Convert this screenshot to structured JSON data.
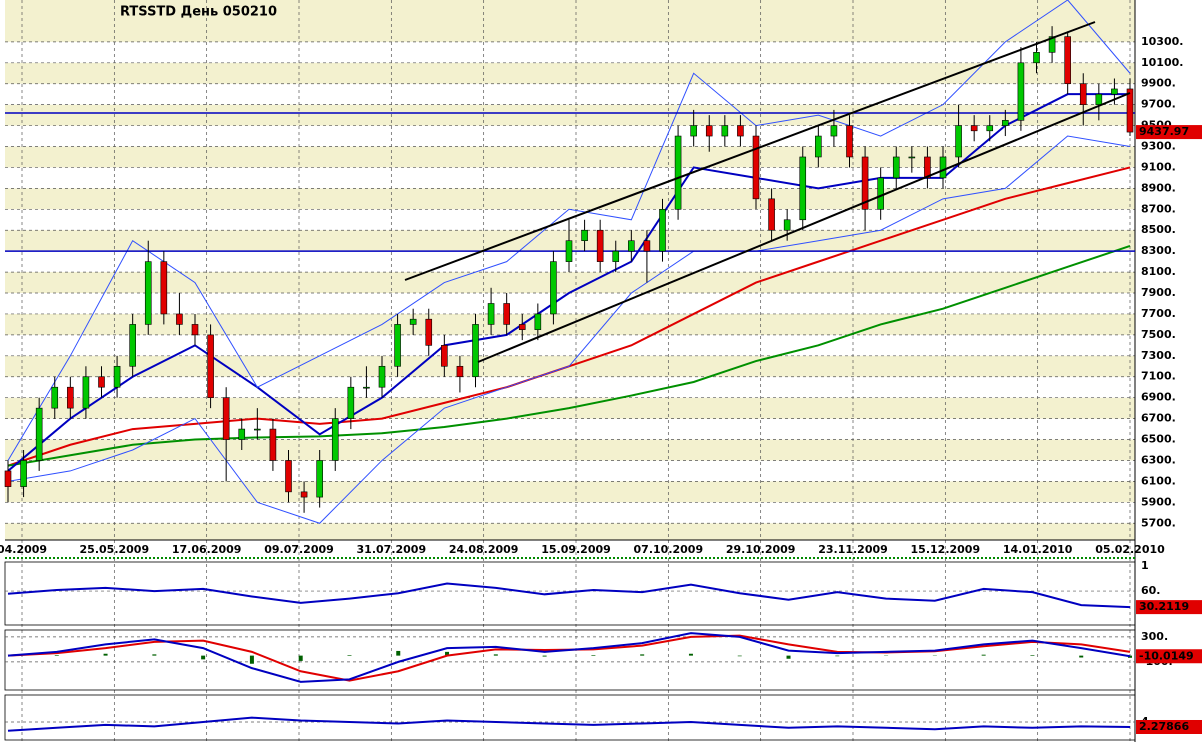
{
  "chart_data": [
    {
      "type": "candlestick",
      "title": "RTSSTD День 050210",
      "x_labels": [
        "04.2009",
        "25.05.2009",
        "17.06.2009",
        "09.07.2009",
        "31.07.2009",
        "24.08.2009",
        "15.09.2009",
        "07.10.2009",
        "29.10.2009",
        "23.11.2009",
        "15.12.2009",
        "14.01.2010",
        "05.02.2010"
      ],
      "open": [
        6200,
        6050,
        6300,
        6800,
        7000,
        6800,
        7100,
        7000,
        7200,
        7600,
        8200,
        7700,
        7600,
        7500,
        6900,
        6500,
        6600,
        6600,
        6300,
        6000,
        5950,
        6300,
        6700,
        7000,
        7000,
        7200,
        7600,
        7650,
        7400,
        7200,
        7100,
        7600,
        7800,
        7600,
        7550,
        7700,
        8200,
        8400,
        8500,
        8200,
        8300,
        8400,
        8300,
        8700,
        9400,
        9500,
        9400,
        9500,
        9400,
        8800,
        8500,
        8600,
        9200,
        9400,
        9500,
        9200,
        8700,
        9000,
        9200,
        9200,
        9000,
        9200,
        9500,
        9450,
        9500,
        9550,
        10100,
        10200,
        10350,
        9900,
        9700,
        9800,
        9850
      ],
      "high": [
        6300,
        6400,
        6900,
        7100,
        7100,
        7200,
        7200,
        7300,
        7700,
        8400,
        8300,
        7900,
        7700,
        7600,
        7000,
        6700,
        6800,
        6700,
        6400,
        6100,
        6400,
        6800,
        7100,
        7200,
        7300,
        7700,
        7750,
        7750,
        7500,
        7300,
        7700,
        7950,
        7900,
        7700,
        7800,
        8300,
        8600,
        8600,
        8600,
        8400,
        8500,
        8500,
        8800,
        9500,
        9650,
        9600,
        9600,
        9600,
        9500,
        8900,
        8700,
        9300,
        9500,
        9650,
        9600,
        9300,
        9100,
        9300,
        9300,
        9300,
        9300,
        9700,
        9600,
        9600,
        9650,
        10250,
        10300,
        10450,
        10400,
        10000,
        9900,
        9950,
        9950
      ],
      "low": [
        5900,
        5950,
        6200,
        6700,
        6700,
        6700,
        6900,
        6900,
        7100,
        7500,
        7600,
        7500,
        7400,
        6800,
        6100,
        6400,
        6500,
        6200,
        5900,
        5800,
        5850,
        6200,
        6600,
        6900,
        6900,
        7100,
        7500,
        7300,
        7100,
        6950,
        7000,
        7500,
        7500,
        7450,
        7450,
        7600,
        8100,
        8300,
        8100,
        8100,
        8200,
        8000,
        8200,
        8600,
        9300,
        9250,
        9300,
        9300,
        8700,
        8400,
        8400,
        8500,
        9100,
        9300,
        9100,
        8500,
        8600,
        8900,
        9050,
        8900,
        8900,
        9100,
        9350,
        9350,
        9400,
        9450,
        10000,
        10100,
        9800,
        9500,
        9550,
        9700,
        9400
      ],
      "close": [
        6050,
        6300,
        6800,
        7000,
        6800,
        7100,
        7000,
        7200,
        7600,
        8200,
        7700,
        7600,
        7500,
        6900,
        6500,
        6600,
        6600,
        6300,
        6000,
        5950,
        6300,
        6700,
        7000,
        7000,
        7200,
        7600,
        7650,
        7400,
        7200,
        7100,
        7600,
        7800,
        7600,
        7550,
        7700,
        8200,
        8400,
        8500,
        8200,
        8300,
        8400,
        8300,
        8700,
        9400,
        9500,
        9400,
        9500,
        9400,
        8800,
        8500,
        8600,
        9200,
        9400,
        9500,
        9200,
        8700,
        9000,
        9200,
        9200,
        9000,
        9200,
        9500,
        9450,
        9500,
        9550,
        10100,
        10200,
        10350,
        9900,
        9700,
        9800,
        9850,
        9437.97
      ],
      "color_up": "#00c800",
      "color_down": "#e00000",
      "overlays": [
        {
          "color": "#e00000",
          "width": 2,
          "values": [
            6250,
            6450,
            6600,
            6650,
            6700,
            6650,
            6700,
            6850,
            7000,
            7200,
            7400,
            7700,
            8000,
            8200,
            8400,
            8600,
            8800,
            8950,
            9100
          ]
        },
        {
          "color": "#009000",
          "width": 2,
          "values": [
            6250,
            6350,
            6450,
            6500,
            6520,
            6530,
            6560,
            6620,
            6700,
            6800,
            6920,
            7050,
            7250,
            7400,
            7600,
            7750,
            7950,
            8150,
            8350
          ]
        },
        {
          "color": "#0000c0",
          "width": 2,
          "values": [
            6200,
            6700,
            7100,
            7400,
            7000,
            6550,
            6900,
            7400,
            7500,
            7900,
            8200,
            9100,
            9000,
            8900,
            9000,
            9000,
            9500,
            9800,
            9800
          ]
        },
        {
          "color": "#3050ff",
          "width": 1,
          "values": [
            6300,
            7300,
            8400,
            8000,
            7000,
            7300,
            7600,
            8000,
            8200,
            8700,
            8600,
            10000,
            9500,
            9600,
            9400,
            9700,
            10300,
            10700,
            10000
          ]
        },
        {
          "color": "#3050ff",
          "width": 1,
          "values": [
            6100,
            6200,
            6400,
            6700,
            5900,
            5700,
            6300,
            6800,
            7000,
            7200,
            7900,
            8300,
            8300,
            8400,
            8500,
            8800,
            8900,
            9400,
            9300
          ]
        }
      ],
      "hlines": {
        "color": "#0000c0",
        "values": [
          9620,
          8300
        ]
      },
      "ylim": [
        5540,
        10700
      ],
      "yticks": [
        {
          "value": 5700,
          "label": "5700."
        },
        {
          "value": 5900,
          "label": "5900."
        },
        {
          "value": 6100,
          "label": "6100."
        },
        {
          "value": 6300,
          "label": "6300."
        },
        {
          "value": 6500,
          "label": "6500."
        },
        {
          "value": 6700,
          "label": "6700."
        },
        {
          "value": 6900,
          "label": "6900."
        },
        {
          "value": 7100,
          "label": "7100."
        },
        {
          "value": 7300,
          "label": "7300."
        },
        {
          "value": 7500,
          "label": "7500."
        },
        {
          "value": 7700,
          "label": "7700."
        },
        {
          "value": 7900,
          "label": "7900."
        },
        {
          "value": 8100,
          "label": "8100."
        },
        {
          "value": 8300,
          "label": "8300."
        },
        {
          "value": 8500,
          "label": "8500."
        },
        {
          "value": 8700,
          "label": "8700."
        },
        {
          "value": 8900,
          "label": "8900."
        },
        {
          "value": 9100,
          "label": "9100."
        },
        {
          "value": 9300,
          "label": "9300."
        },
        {
          "value": 9500,
          "label": "9500."
        },
        {
          "value": 9700,
          "label": "9700."
        },
        {
          "value": 9900,
          "label": "9900."
        },
        {
          "value": 10100,
          "label": "10100."
        },
        {
          "value": 10300,
          "label": "10300."
        }
      ],
      "grid": true
    },
    {
      "type": "line",
      "panel_label": "1",
      "ylim": [
        -3,
        114
      ],
      "yticks": [
        {
          "value": 60,
          "label": "60."
        }
      ],
      "series": [
        {
          "color": "#0000c0",
          "values": [
            55,
            62,
            66,
            60,
            64,
            50,
            38,
            46,
            56,
            74,
            66,
            54,
            62,
            58,
            72,
            56,
            44,
            58,
            46,
            42,
            64,
            58,
            34,
            30.2119
          ]
        }
      ]
    },
    {
      "type": "line",
      "ylim": [
        -550,
        410
      ],
      "yticks": [
        {
          "value": 300,
          "label": "300."
        },
        {
          "value": -100,
          "label": "-100."
        }
      ],
      "series": [
        {
          "type": "bar",
          "color": "#006000",
          "values": [
            0,
            10,
            30,
            20,
            -60,
            -130,
            -85,
            10,
            75,
            60,
            20,
            -15,
            10,
            20,
            30,
            -10,
            -50,
            -10,
            5,
            5,
            15,
            10,
            -30,
            -35
          ]
        },
        {
          "color": "#e00000",
          "values": [
            0,
            40,
            120,
            220,
            240,
            60,
            -250,
            -400,
            -250,
            0,
            100,
            90,
            100,
            160,
            300,
            320,
            180,
            60,
            50,
            70,
            150,
            220,
            180,
            60
          ]
        },
        {
          "color": "#0000c0",
          "values": [
            0,
            60,
            180,
            260,
            120,
            -200,
            -420,
            -380,
            -100,
            120,
            140,
            60,
            120,
            200,
            360,
            300,
            80,
            40,
            60,
            80,
            180,
            240,
            120,
            -10.0149
          ]
        }
      ]
    },
    {
      "type": "line",
      "ylim": [
        -2.2,
        13.3
      ],
      "yticks": [
        {
          "value": 4,
          "label": "4."
        }
      ],
      "series": [
        {
          "color": "#0000c0",
          "values": [
            1,
            2,
            3,
            2.5,
            4,
            5.5,
            4.5,
            4,
            3.5,
            4.5,
            4,
            3.5,
            3,
            3.5,
            4,
            3,
            2,
            2.5,
            2,
            1.5,
            2.5,
            2,
            2.5,
            2.27866
          ]
        }
      ]
    }
  ]
}
